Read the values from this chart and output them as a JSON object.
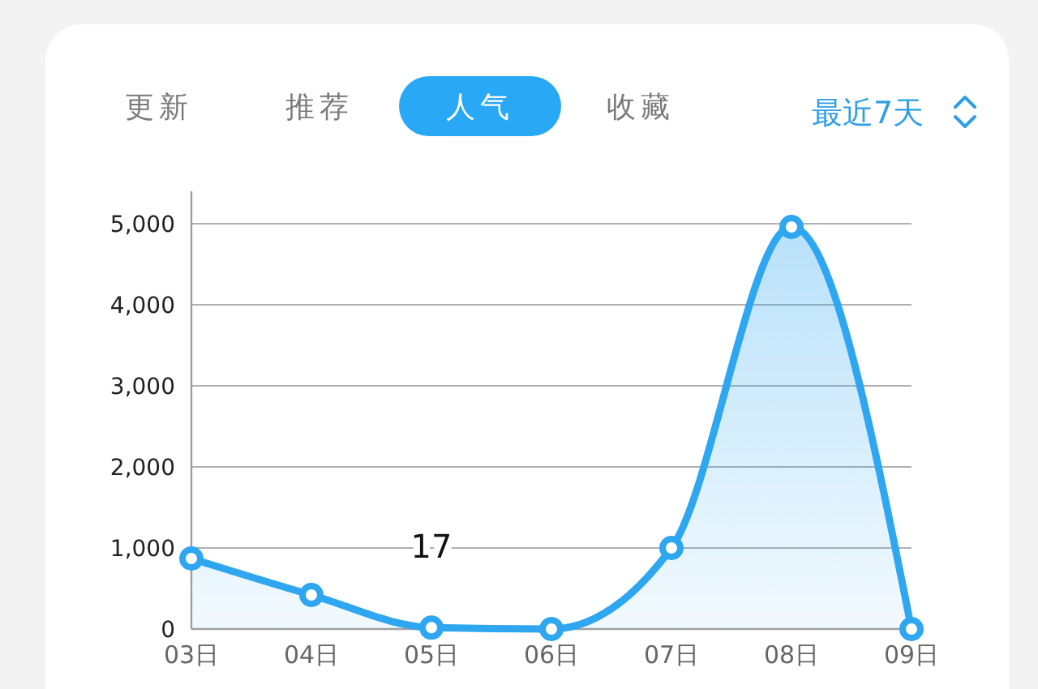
{
  "chart_data": {
    "type": "area",
    "title": "人气",
    "subtitle": "最近7天",
    "annotations": [
      "更新",
      "推荐",
      "收藏",
      {
        "text": "17",
        "x": "05日",
        "y": 17
      }
    ],
    "categories": [
      "03日",
      "04日",
      "05日",
      "06日",
      "07日",
      "08日",
      "09日"
    ],
    "series": [
      {
        "color": "#2ea6f0",
        "values": [
          870,
          420,
          17,
          0,
          1000,
          4960,
          0
        ]
      }
    ],
    "ylim": [
      0,
      5400
    ],
    "yticks": [
      0,
      {
        "value": 1000,
        "label": "1,000"
      },
      {
        "value": 2000,
        "label": "2,000"
      },
      {
        "value": 3000,
        "label": "3,000"
      },
      {
        "value": 4000,
        "label": "4,000"
      },
      {
        "value": 5000,
        "label": "5,000"
      }
    ],
    "grid": "y",
    "marker": "circle",
    "line_style": "solid"
  }
}
